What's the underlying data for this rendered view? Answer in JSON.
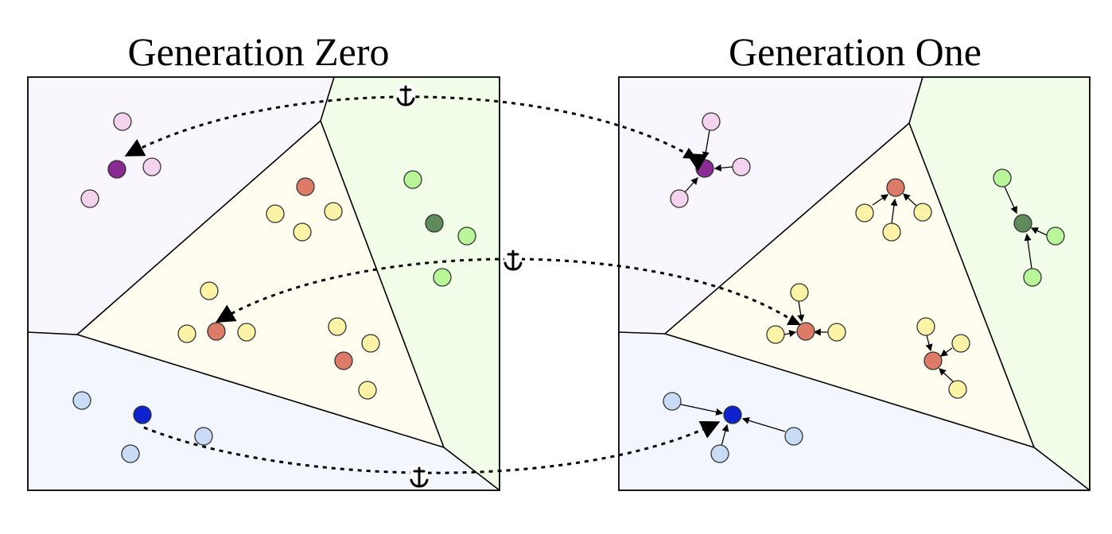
{
  "panels": {
    "left": {
      "title": "Generation Zero"
    },
    "right": {
      "title": "Generation One"
    }
  },
  "icons": {
    "anchor": "anchor-icon"
  },
  "colors": {
    "region_purple": "#f9f7fd",
    "region_yellow": "#fefdf0",
    "region_green": "#f1fde9",
    "region_blue": "#f3f6fd",
    "purple_dark": "#8a2a93",
    "purple_light": "#f4d3ee",
    "orange_dark": "#de7a68",
    "yellow_light": "#fdf3a6",
    "green_dark": "#5f8a5b",
    "green_light": "#b9f69a",
    "blue_dark": "#0e22d0",
    "blue_light": "#c8dcf6"
  }
}
